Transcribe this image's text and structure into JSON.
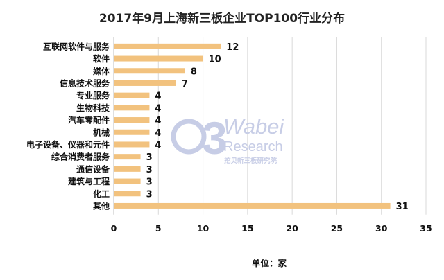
{
  "chart_data": {
    "type": "bar",
    "orientation": "horizontal",
    "title": "2017年9月上海新三板企业TOP100行业分布",
    "xlabel": "单位：家",
    "ylabel": "",
    "xlim": [
      0,
      35
    ],
    "xticks": [
      "0",
      "5",
      "10",
      "15",
      "20",
      "25",
      "30",
      "35"
    ],
    "grid": true,
    "bar_color": "#f2c27e",
    "categories": [
      "互联网软件与服务",
      "软件",
      "媒体",
      "信息技术服务",
      "专业服务",
      "生物科技",
      "汽车零配件",
      "机械",
      "电子设备、仪器和元件",
      "综合消费者服务",
      "通信设备",
      "建筑与工程",
      "化工",
      "其他"
    ],
    "values": [
      12,
      10,
      8,
      7,
      4,
      4,
      4,
      4,
      4,
      3,
      3,
      3,
      3,
      31
    ]
  },
  "watermark": {
    "logo_text": "3",
    "brand": "Wabei",
    "sub": "Research",
    "cn": "挖贝新三板研究院",
    "color": "#c7cde6"
  }
}
